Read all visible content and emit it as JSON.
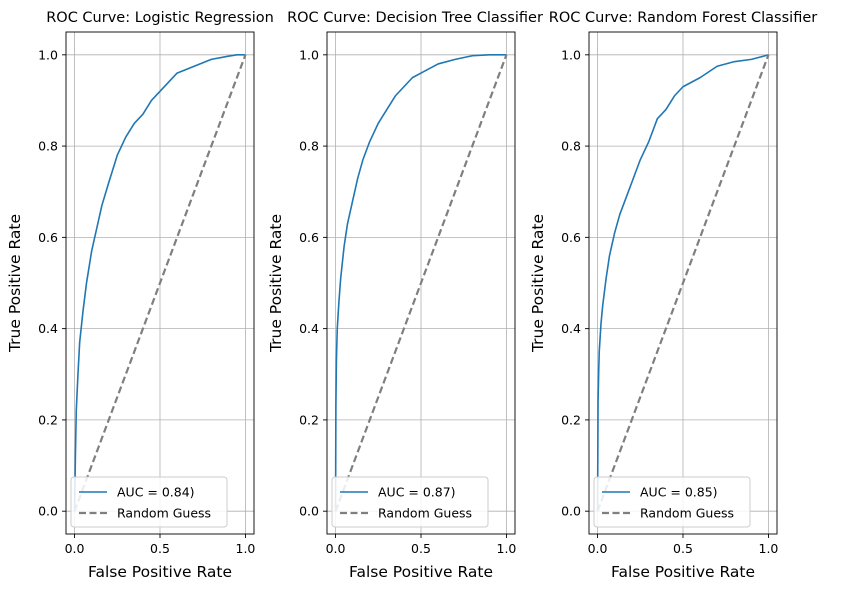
{
  "chart_data": [
    {
      "type": "line",
      "title": "ROC Curve: Logistic Regression",
      "xlabel": "False Positive Rate",
      "ylabel": "True Positive Rate",
      "xlim": [
        -0.05,
        1.05
      ],
      "ylim": [
        -0.05,
        1.05
      ],
      "xticks": [
        "0.0",
        "0.5",
        "1.0"
      ],
      "yticks": [
        "0.0",
        "0.2",
        "0.4",
        "0.6",
        "0.8",
        "1.0"
      ],
      "grid": true,
      "legend_position": "lower-right",
      "series": [
        {
          "name": "AUC = 0.84)",
          "color": "#1f77b4",
          "style": "solid",
          "x": [
            0,
            0.005,
            0.01,
            0.02,
            0.03,
            0.05,
            0.07,
            0.1,
            0.13,
            0.16,
            0.2,
            0.25,
            0.3,
            0.35,
            0.4,
            0.45,
            0.5,
            0.55,
            0.6,
            0.7,
            0.8,
            0.9,
            0.95,
            1.0
          ],
          "y": [
            0,
            0.12,
            0.22,
            0.3,
            0.37,
            0.44,
            0.5,
            0.57,
            0.62,
            0.67,
            0.72,
            0.78,
            0.82,
            0.85,
            0.87,
            0.9,
            0.92,
            0.94,
            0.96,
            0.975,
            0.99,
            0.997,
            1.0,
            1.0
          ]
        },
        {
          "name": "Random Guess",
          "color": "#7f7f7f",
          "style": "dashed",
          "x": [
            0,
            1
          ],
          "y": [
            0,
            1
          ]
        }
      ]
    },
    {
      "type": "line",
      "title": "ROC Curve: Decision Tree Classifier",
      "xlabel": "False Positive Rate",
      "ylabel": "True Positive Rate",
      "xlim": [
        -0.05,
        1.05
      ],
      "ylim": [
        -0.05,
        1.05
      ],
      "xticks": [
        "0.0",
        "0.5",
        "1.0"
      ],
      "yticks": [
        "0.0",
        "0.2",
        "0.4",
        "0.6",
        "0.8",
        "1.0"
      ],
      "grid": true,
      "legend_position": "lower-right",
      "series": [
        {
          "name": "AUC = 0.87)",
          "color": "#1f77b4",
          "style": "solid",
          "x": [
            0,
            0.002,
            0.005,
            0.01,
            0.02,
            0.03,
            0.05,
            0.07,
            0.1,
            0.13,
            0.16,
            0.2,
            0.25,
            0.3,
            0.35,
            0.4,
            0.45,
            0.5,
            0.6,
            0.7,
            0.8,
            0.9,
            1.0
          ],
          "y": [
            0,
            0.23,
            0.33,
            0.4,
            0.46,
            0.51,
            0.58,
            0.63,
            0.68,
            0.73,
            0.77,
            0.81,
            0.85,
            0.88,
            0.91,
            0.93,
            0.95,
            0.96,
            0.98,
            0.99,
            0.998,
            1.0,
            1.0
          ]
        },
        {
          "name": "Random Guess",
          "color": "#7f7f7f",
          "style": "dashed",
          "x": [
            0,
            1
          ],
          "y": [
            0,
            1
          ]
        }
      ]
    },
    {
      "type": "line",
      "title": "ROC Curve: Random Forest Classifier",
      "xlabel": "False Positive Rate",
      "ylabel": "True Positive Rate",
      "xlim": [
        -0.05,
        1.05
      ],
      "ylim": [
        -0.05,
        1.05
      ],
      "xticks": [
        "0.0",
        "0.5",
        "1.0"
      ],
      "yticks": [
        "0.0",
        "0.2",
        "0.4",
        "0.6",
        "0.8",
        "1.0"
      ],
      "grid": true,
      "legend_position": "lower-right",
      "series": [
        {
          "name": "AUC = 0.85)",
          "color": "#1f77b4",
          "style": "solid",
          "x": [
            0,
            0.003,
            0.007,
            0.01,
            0.02,
            0.03,
            0.05,
            0.07,
            0.1,
            0.13,
            0.17,
            0.2,
            0.25,
            0.3,
            0.35,
            0.4,
            0.45,
            0.5,
            0.6,
            0.7,
            0.8,
            0.9,
            1.0
          ],
          "y": [
            0,
            0.24,
            0.31,
            0.35,
            0.41,
            0.45,
            0.51,
            0.56,
            0.61,
            0.65,
            0.69,
            0.72,
            0.77,
            0.81,
            0.86,
            0.88,
            0.91,
            0.93,
            0.95,
            0.975,
            0.985,
            0.99,
            1.0
          ]
        },
        {
          "name": "Random Guess",
          "color": "#7f7f7f",
          "style": "dashed",
          "x": [
            0,
            1
          ],
          "y": [
            0,
            1
          ]
        }
      ]
    }
  ]
}
